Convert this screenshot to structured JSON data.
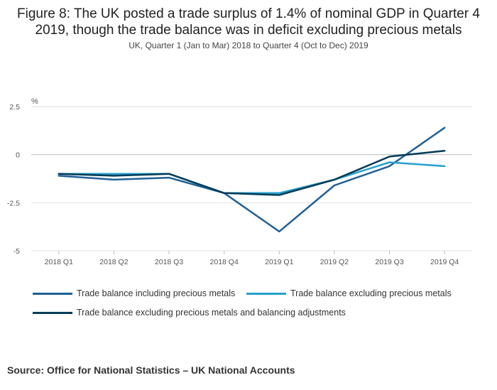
{
  "title": "Figure 8: The UK posted a trade surplus of 1.4% of nominal GDP in Quarter 4 2019, though the trade balance was in deficit excluding precious metals",
  "subtitle": "UK, Quarter 1 (Jan to Mar) 2018 to Quarter 4 (Oct to Dec) 2019",
  "source": "Source: Office for National Statistics – UK National Accounts",
  "chart_data": {
    "type": "line",
    "title": "Figure 8: The UK posted a trade surplus of 1.4% of nominal GDP in Quarter 4 2019, though the trade balance was in deficit excluding precious metals",
    "ylabel": "%",
    "xlabel": "",
    "ylim": [
      -5,
      2.5
    ],
    "yticks": [
      2.5,
      0,
      -2.5,
      -5
    ],
    "ytick_labels": [
      "2.5",
      "0",
      "-2.5",
      "-5"
    ],
    "grid": true,
    "legend_position": "bottom",
    "categories": [
      "2018 Q1",
      "2018 Q2",
      "2018 Q3",
      "2018 Q4",
      "2019 Q1",
      "2019 Q2",
      "2019 Q3",
      "2019 Q4"
    ],
    "series": [
      {
        "name": "Trade balance including precious metals",
        "color": "#206095",
        "values": [
          -1.1,
          -1.3,
          -1.2,
          -2.0,
          -4.0,
          -1.6,
          -0.6,
          1.4
        ]
      },
      {
        "name": "Trade balance excluding precious metals",
        "color": "#27a0cc",
        "values": [
          -1.0,
          -1.0,
          -1.0,
          -2.0,
          -2.0,
          -1.3,
          -0.4,
          -0.6
        ]
      },
      {
        "name": "Trade balance excluding precious metals and balancing adjustments",
        "color": "#003c57",
        "values": [
          -1.0,
          -1.1,
          -1.0,
          -2.0,
          -2.1,
          -1.3,
          -0.1,
          0.2
        ]
      }
    ]
  }
}
